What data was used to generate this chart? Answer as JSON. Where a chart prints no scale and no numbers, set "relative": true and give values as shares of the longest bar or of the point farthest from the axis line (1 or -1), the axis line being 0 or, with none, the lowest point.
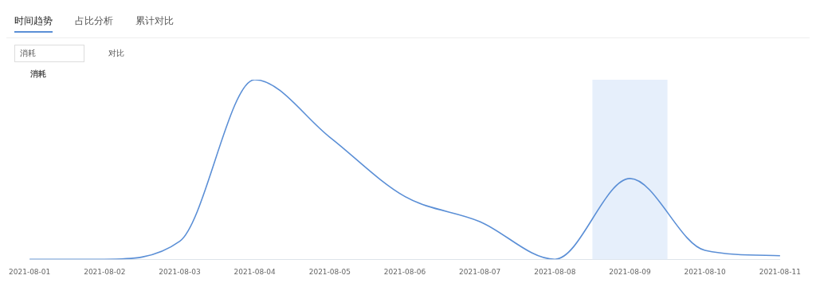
{
  "chart_data": {
    "type": "line",
    "relative": true,
    "ylabel": "消耗",
    "annotations": [
      "时间趋势",
      "占比分析",
      "累计对比",
      "消耗",
      "对比"
    ],
    "categories": [
      "2021-08-01",
      "2021-08-02",
      "2021-08-03",
      "2021-08-04",
      "2021-08-05",
      "2021-08-06",
      "2021-08-07",
      "2021-08-08",
      "2021-08-09",
      "2021-08-10",
      "2021-08-11"
    ],
    "series": [
      {
        "color": "#5b8fd6",
        "values": [
          0,
          0,
          0.1,
          1,
          0.68,
          0.35,
          0.21,
          0,
          0.45,
          0.05,
          0.02
        ]
      }
    ],
    "bands": [
      {
        "axis": "x",
        "from": "2021-08-09",
        "to": "2021-08-09",
        "color": "#e6effb"
      }
    ],
    "grid": false,
    "legend": false,
    "marker": "none",
    "line_style": "solid"
  }
}
